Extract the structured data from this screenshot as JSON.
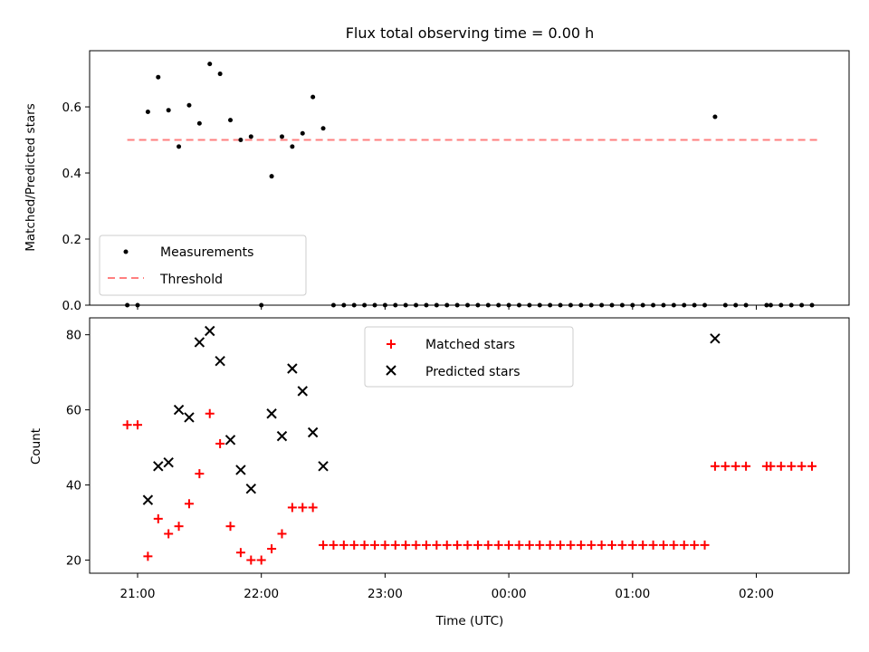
{
  "chart_data": [
    {
      "type": "scatter",
      "title": "Flux total observing time = 0.00 h",
      "xlabel": "",
      "ylabel": "Matched/Predicted stars",
      "ylim": [
        0,
        0.77
      ],
      "yticks": [
        0.0,
        0.2,
        0.4,
        0.6
      ],
      "ytick_labels": [
        "0.0",
        "0.2",
        "0.4",
        "0.6"
      ],
      "legend_position": "lower-left",
      "threshold": {
        "name": "Threshold",
        "y": 0.5,
        "x_start": "20:55",
        "x_end": "02:30",
        "color": "#ff7f7f"
      },
      "series": [
        {
          "name": "Measurements",
          "color": "#000000",
          "points": [
            [
              "20:55",
              0.0
            ],
            [
              "21:00",
              0.0
            ],
            [
              "21:05",
              0.585
            ],
            [
              "21:10",
              0.69
            ],
            [
              "21:15",
              0.59
            ],
            [
              "21:20",
              0.48
            ],
            [
              "21:25",
              0.605
            ],
            [
              "21:30",
              0.55
            ],
            [
              "21:35",
              0.73
            ],
            [
              "21:40",
              0.7
            ],
            [
              "21:45",
              0.56
            ],
            [
              "21:50",
              0.5
            ],
            [
              "21:55",
              0.51
            ],
            [
              "22:00",
              0.0
            ],
            [
              "22:05",
              0.39
            ],
            [
              "22:10",
              0.51
            ],
            [
              "22:15",
              0.48
            ],
            [
              "22:20",
              0.52
            ],
            [
              "22:25",
              0.63
            ],
            [
              "22:30",
              0.535
            ],
            [
              "22:35",
              0.0
            ],
            [
              "22:40",
              0.0
            ],
            [
              "22:45",
              0.0
            ],
            [
              "22:50",
              0.0
            ],
            [
              "22:55",
              0.0
            ],
            [
              "23:00",
              0.0
            ],
            [
              "23:05",
              0.0
            ],
            [
              "23:10",
              0.0
            ],
            [
              "23:15",
              0.0
            ],
            [
              "23:20",
              0.0
            ],
            [
              "23:25",
              0.0
            ],
            [
              "23:30",
              0.0
            ],
            [
              "23:35",
              0.0
            ],
            [
              "23:40",
              0.0
            ],
            [
              "23:45",
              0.0
            ],
            [
              "23:50",
              0.0
            ],
            [
              "23:55",
              0.0
            ],
            [
              "00:00",
              0.0
            ],
            [
              "00:05",
              0.0
            ],
            [
              "00:10",
              0.0
            ],
            [
              "00:15",
              0.0
            ],
            [
              "00:20",
              0.0
            ],
            [
              "00:25",
              0.0
            ],
            [
              "00:30",
              0.0
            ],
            [
              "00:35",
              0.0
            ],
            [
              "00:40",
              0.0
            ],
            [
              "00:45",
              0.0
            ],
            [
              "00:50",
              0.0
            ],
            [
              "00:55",
              0.0
            ],
            [
              "01:00",
              0.0
            ],
            [
              "01:05",
              0.0
            ],
            [
              "01:10",
              0.0
            ],
            [
              "01:15",
              0.0
            ],
            [
              "01:20",
              0.0
            ],
            [
              "01:25",
              0.0
            ],
            [
              "01:30",
              0.0
            ],
            [
              "01:35",
              0.0
            ],
            [
              "01:40",
              0.57
            ],
            [
              "01:45",
              0.0
            ],
            [
              "01:50",
              0.0
            ],
            [
              "01:55",
              0.0
            ],
            [
              "02:05",
              0.0
            ],
            [
              "02:07",
              0.0
            ],
            [
              "02:12",
              0.0
            ],
            [
              "02:17",
              0.0
            ],
            [
              "02:22",
              0.0
            ],
            [
              "02:27",
              0.0
            ]
          ]
        }
      ]
    },
    {
      "type": "scatter",
      "title": "",
      "xlabel": "Time (UTC)",
      "ylabel": "Count",
      "ylim": [
        16.5,
        84.5
      ],
      "yticks": [
        20,
        40,
        60,
        80
      ],
      "ytick_labels": [
        "20",
        "40",
        "60",
        "80"
      ],
      "xtick_labels": [
        "21:00",
        "22:00",
        "23:00",
        "00:00",
        "01:00",
        "02:00"
      ],
      "legend_position": "upper-center",
      "series": [
        {
          "name": "Matched stars",
          "color": "#ff0000",
          "marker": "plus",
          "points": [
            [
              "20:55",
              56
            ],
            [
              "21:00",
              56
            ],
            [
              "21:05",
              21
            ],
            [
              "21:10",
              31
            ],
            [
              "21:15",
              27
            ],
            [
              "21:20",
              29
            ],
            [
              "21:25",
              35
            ],
            [
              "21:30",
              43
            ],
            [
              "21:35",
              59
            ],
            [
              "21:40",
              51
            ],
            [
              "21:45",
              29
            ],
            [
              "21:50",
              22
            ],
            [
              "21:55",
              20
            ],
            [
              "22:00",
              20
            ],
            [
              "22:05",
              23
            ],
            [
              "22:10",
              27
            ],
            [
              "22:15",
              34
            ],
            [
              "22:20",
              34
            ],
            [
              "22:25",
              34
            ],
            [
              "22:30",
              24
            ],
            [
              "22:35",
              24
            ],
            [
              "22:40",
              24
            ],
            [
              "22:45",
              24
            ],
            [
              "22:50",
              24
            ],
            [
              "22:55",
              24
            ],
            [
              "23:00",
              24
            ],
            [
              "23:05",
              24
            ],
            [
              "23:10",
              24
            ],
            [
              "23:15",
              24
            ],
            [
              "23:20",
              24
            ],
            [
              "23:25",
              24
            ],
            [
              "23:30",
              24
            ],
            [
              "23:35",
              24
            ],
            [
              "23:40",
              24
            ],
            [
              "23:45",
              24
            ],
            [
              "23:50",
              24
            ],
            [
              "23:55",
              24
            ],
            [
              "00:00",
              24
            ],
            [
              "00:05",
              24
            ],
            [
              "00:10",
              24
            ],
            [
              "00:15",
              24
            ],
            [
              "00:20",
              24
            ],
            [
              "00:25",
              24
            ],
            [
              "00:30",
              24
            ],
            [
              "00:35",
              24
            ],
            [
              "00:40",
              24
            ],
            [
              "00:45",
              24
            ],
            [
              "00:50",
              24
            ],
            [
              "00:55",
              24
            ],
            [
              "01:00",
              24
            ],
            [
              "01:05",
              24
            ],
            [
              "01:10",
              24
            ],
            [
              "01:15",
              24
            ],
            [
              "01:20",
              24
            ],
            [
              "01:25",
              24
            ],
            [
              "01:30",
              24
            ],
            [
              "01:35",
              24
            ],
            [
              "01:40",
              45
            ],
            [
              "01:45",
              45
            ],
            [
              "01:50",
              45
            ],
            [
              "01:55",
              45
            ],
            [
              "02:05",
              45
            ],
            [
              "02:07",
              45
            ],
            [
              "02:12",
              45
            ],
            [
              "02:17",
              45
            ],
            [
              "02:22",
              45
            ],
            [
              "02:27",
              45
            ]
          ]
        },
        {
          "name": "Predicted stars",
          "color": "#000000",
          "marker": "x",
          "points": [
            [
              "21:05",
              36
            ],
            [
              "21:10",
              45
            ],
            [
              "21:15",
              46
            ],
            [
              "21:20",
              60
            ],
            [
              "21:25",
              58
            ],
            [
              "21:30",
              78
            ],
            [
              "21:35",
              81
            ],
            [
              "21:40",
              73
            ],
            [
              "21:45",
              52
            ],
            [
              "21:50",
              44
            ],
            [
              "21:55",
              39
            ],
            [
              "22:05",
              59
            ],
            [
              "22:10",
              53
            ],
            [
              "22:15",
              71
            ],
            [
              "22:20",
              65
            ],
            [
              "22:25",
              54
            ],
            [
              "22:30",
              45
            ],
            [
              "01:40",
              79
            ]
          ]
        }
      ]
    }
  ]
}
